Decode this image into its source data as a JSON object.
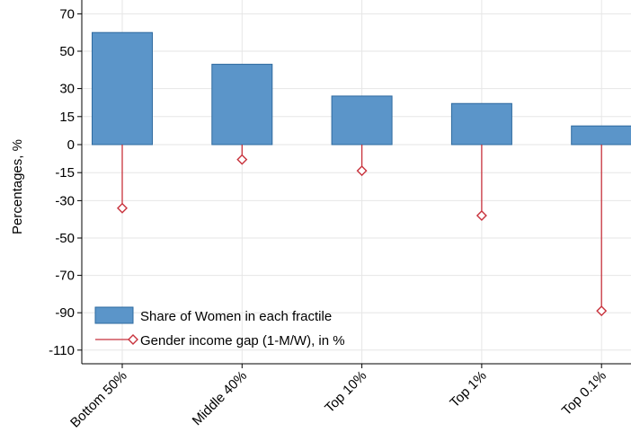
{
  "chart_data": {
    "type": "bar",
    "categories": [
      "Bottom 50%",
      "Middle 40%",
      "Top 10%",
      "Top 1%",
      "Top 0.1%"
    ],
    "series": [
      {
        "name": "Share of Women in each fractile",
        "type": "bar",
        "values": [
          60,
          43,
          26,
          22,
          10
        ],
        "color": "#5b95c9",
        "stroke": "#2e6a9f"
      },
      {
        "name": "Gender income gap (1-M/W), in %",
        "type": "dropline",
        "values": [
          -34,
          -8,
          -14,
          -38,
          -89
        ],
        "color": "#c8323c"
      }
    ],
    "ylabel": "Percentages, %",
    "yticks": [
      70,
      50,
      30,
      15,
      0,
      -15,
      -30,
      -50,
      -70,
      -90,
      -110
    ],
    "ylim": [
      -116,
      75
    ],
    "grid": true,
    "legend_position": "bottom-left"
  }
}
